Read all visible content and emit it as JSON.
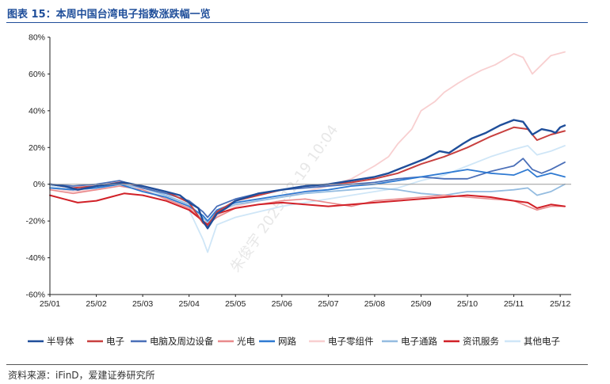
{
  "title": "图表 15：本周中国台湾电子指数涨跌幅一览",
  "source": "资料来源：iFinD，爱建证券研究所",
  "watermark": "朱俊宇 2025-12-19 10:04",
  "chart_data": {
    "type": "line",
    "x_ticks": [
      "25/01",
      "25/02",
      "25/03",
      "25/04",
      "25/05",
      "25/06",
      "25/07",
      "25/08",
      "25/09",
      "25/10",
      "25/11",
      "25/12"
    ],
    "y_ticks": [
      "80%",
      "60%",
      "40%",
      "20%",
      "0%",
      "-20%",
      "-40%",
      "-60%"
    ],
    "ylim": [
      -60,
      80
    ],
    "xlim": [
      0,
      11.1
    ],
    "grid": false,
    "legend_position": "bottom",
    "series": [
      {
        "name": "半导体",
        "color": "#1f4e9a",
        "width": 2.4,
        "points": [
          [
            0,
            0
          ],
          [
            0.3,
            -1
          ],
          [
            0.6,
            -3
          ],
          [
            1,
            -1
          ],
          [
            1.3,
            0
          ],
          [
            1.6,
            1
          ],
          [
            2,
            -1
          ],
          [
            2.5,
            -4
          ],
          [
            2.8,
            -6
          ],
          [
            3,
            -10
          ],
          [
            3.2,
            -13
          ],
          [
            3.3,
            -20
          ],
          [
            3.4,
            -24
          ],
          [
            3.6,
            -16
          ],
          [
            3.8,
            -13
          ],
          [
            4,
            -9
          ],
          [
            4.5,
            -5
          ],
          [
            5,
            -3
          ],
          [
            5.5,
            -1
          ],
          [
            6,
            0
          ],
          [
            6.5,
            2
          ],
          [
            7,
            4
          ],
          [
            7.3,
            6
          ],
          [
            7.6,
            9
          ],
          [
            7.9,
            12
          ],
          [
            8.1,
            14
          ],
          [
            8.4,
            18
          ],
          [
            8.6,
            17
          ],
          [
            8.9,
            22
          ],
          [
            9.1,
            25
          ],
          [
            9.4,
            28
          ],
          [
            9.7,
            32
          ],
          [
            10,
            35
          ],
          [
            10.2,
            34
          ],
          [
            10.4,
            27
          ],
          [
            10.6,
            30
          ],
          [
            10.8,
            29
          ],
          [
            10.9,
            28
          ],
          [
            11,
            31
          ],
          [
            11.1,
            32
          ]
        ]
      },
      {
        "name": "电子",
        "color": "#c8403f",
        "width": 2.0,
        "points": [
          [
            0,
            0
          ],
          [
            0.5,
            -2
          ],
          [
            1,
            -1
          ],
          [
            1.5,
            1
          ],
          [
            2,
            -1
          ],
          [
            2.5,
            -4
          ],
          [
            3,
            -10
          ],
          [
            3.3,
            -21
          ],
          [
            3.4,
            -23
          ],
          [
            3.6,
            -15
          ],
          [
            4,
            -9
          ],
          [
            4.5,
            -6
          ],
          [
            5,
            -3
          ],
          [
            5.5,
            -1
          ],
          [
            6,
            0
          ],
          [
            6.5,
            1
          ],
          [
            7,
            3
          ],
          [
            7.5,
            6
          ],
          [
            8,
            11
          ],
          [
            8.5,
            15
          ],
          [
            9,
            20
          ],
          [
            9.5,
            26
          ],
          [
            10,
            31
          ],
          [
            10.3,
            30
          ],
          [
            10.5,
            24
          ],
          [
            10.8,
            27
          ],
          [
            11.1,
            29
          ]
        ]
      },
      {
        "name": "电脑及周边设备",
        "color": "#4a6fb8",
        "width": 1.8,
        "points": [
          [
            0,
            0
          ],
          [
            0.5,
            -1
          ],
          [
            1,
            0
          ],
          [
            1.5,
            2
          ],
          [
            2,
            -2
          ],
          [
            2.5,
            -5
          ],
          [
            3,
            -9
          ],
          [
            3.3,
            -15
          ],
          [
            3.4,
            -18
          ],
          [
            3.6,
            -12
          ],
          [
            4,
            -8
          ],
          [
            4.5,
            -5
          ],
          [
            5,
            -3
          ],
          [
            5.5,
            -2
          ],
          [
            6,
            -1
          ],
          [
            6.5,
            0
          ],
          [
            7,
            1
          ],
          [
            7.5,
            3
          ],
          [
            8,
            4
          ],
          [
            8.5,
            3
          ],
          [
            9,
            3
          ],
          [
            9.5,
            7
          ],
          [
            10,
            10
          ],
          [
            10.2,
            14
          ],
          [
            10.4,
            8
          ],
          [
            10.6,
            6
          ],
          [
            10.8,
            8
          ],
          [
            11.1,
            12
          ]
        ]
      },
      {
        "name": "光电",
        "color": "#e98a8c",
        "width": 1.6,
        "points": [
          [
            0,
            -3
          ],
          [
            0.5,
            -5
          ],
          [
            1,
            -3
          ],
          [
            1.5,
            -1
          ],
          [
            2,
            -3
          ],
          [
            2.5,
            -8
          ],
          [
            3,
            -13
          ],
          [
            3.3,
            -20
          ],
          [
            3.4,
            -22
          ],
          [
            3.6,
            -18
          ],
          [
            4,
            -13
          ],
          [
            4.5,
            -11
          ],
          [
            5,
            -9
          ],
          [
            5.5,
            -8
          ],
          [
            6,
            -10
          ],
          [
            6.5,
            -12
          ],
          [
            7,
            -9
          ],
          [
            7.5,
            -8
          ],
          [
            8,
            -7
          ],
          [
            8.5,
            -6
          ],
          [
            9,
            -7
          ],
          [
            9.5,
            -8
          ],
          [
            10,
            -9
          ],
          [
            10.3,
            -12
          ],
          [
            10.5,
            -14
          ],
          [
            10.8,
            -12
          ],
          [
            11.1,
            -12
          ]
        ]
      },
      {
        "name": "网路",
        "color": "#2f7ad2",
        "width": 1.8,
        "points": [
          [
            0,
            -2
          ],
          [
            0.5,
            -3
          ],
          [
            1,
            -2
          ],
          [
            1.5,
            0
          ],
          [
            2,
            -4
          ],
          [
            2.5,
            -7
          ],
          [
            3,
            -12
          ],
          [
            3.3,
            -17
          ],
          [
            3.4,
            -20
          ],
          [
            3.6,
            -14
          ],
          [
            4,
            -10
          ],
          [
            4.5,
            -8
          ],
          [
            5,
            -6
          ],
          [
            5.5,
            -4
          ],
          [
            6,
            -3
          ],
          [
            6.5,
            -1
          ],
          [
            7,
            0
          ],
          [
            7.5,
            2
          ],
          [
            8,
            4
          ],
          [
            8.5,
            6
          ],
          [
            9,
            8
          ],
          [
            9.5,
            6
          ],
          [
            10,
            5
          ],
          [
            10.3,
            8
          ],
          [
            10.5,
            4
          ],
          [
            10.8,
            6
          ],
          [
            11.1,
            4
          ]
        ]
      },
      {
        "name": "电子零组件",
        "color": "#f8cfd0",
        "width": 1.8,
        "points": [
          [
            0,
            -2
          ],
          [
            0.5,
            -4
          ],
          [
            1,
            -3
          ],
          [
            1.5,
            -1
          ],
          [
            2,
            -3
          ],
          [
            2.5,
            -7
          ],
          [
            3,
            -12
          ],
          [
            3.3,
            -21
          ],
          [
            3.4,
            -23
          ],
          [
            3.6,
            -17
          ],
          [
            4,
            -12
          ],
          [
            4.5,
            -9
          ],
          [
            5,
            -7
          ],
          [
            5.5,
            -4
          ],
          [
            6,
            -1
          ],
          [
            6.5,
            3
          ],
          [
            7,
            10
          ],
          [
            7.3,
            15
          ],
          [
            7.5,
            22
          ],
          [
            7.8,
            30
          ],
          [
            8,
            40
          ],
          [
            8.3,
            45
          ],
          [
            8.5,
            50
          ],
          [
            8.8,
            55
          ],
          [
            9,
            58
          ],
          [
            9.3,
            62
          ],
          [
            9.6,
            65
          ],
          [
            9.8,
            68
          ],
          [
            10,
            71
          ],
          [
            10.2,
            69
          ],
          [
            10.4,
            60
          ],
          [
            10.6,
            65
          ],
          [
            10.8,
            70
          ],
          [
            11.1,
            72
          ]
        ]
      },
      {
        "name": "电子通路",
        "color": "#94bce0",
        "width": 1.8,
        "points": [
          [
            0,
            -2
          ],
          [
            0.5,
            -3
          ],
          [
            1,
            -2
          ],
          [
            1.5,
            0
          ],
          [
            2,
            -2
          ],
          [
            2.5,
            -6
          ],
          [
            3,
            -11
          ],
          [
            3.3,
            -18
          ],
          [
            3.4,
            -21
          ],
          [
            3.6,
            -15
          ],
          [
            4,
            -11
          ],
          [
            4.5,
            -9
          ],
          [
            5,
            -7
          ],
          [
            5.5,
            -5
          ],
          [
            6,
            -4
          ],
          [
            6.5,
            -3
          ],
          [
            7,
            -2
          ],
          [
            7.5,
            -3
          ],
          [
            8,
            -5
          ],
          [
            8.5,
            -6
          ],
          [
            9,
            -4
          ],
          [
            9.5,
            -4
          ],
          [
            10,
            -3
          ],
          [
            10.3,
            -2
          ],
          [
            10.5,
            -6
          ],
          [
            10.8,
            -4
          ],
          [
            11.1,
            0
          ]
        ]
      },
      {
        "name": "资讯服务",
        "color": "#d12027",
        "width": 2.0,
        "points": [
          [
            0,
            -6
          ],
          [
            0.3,
            -8
          ],
          [
            0.6,
            -10
          ],
          [
            1,
            -9
          ],
          [
            1.3,
            -7
          ],
          [
            1.6,
            -5
          ],
          [
            2,
            -6
          ],
          [
            2.5,
            -9
          ],
          [
            3,
            -14
          ],
          [
            3.3,
            -20
          ],
          [
            3.4,
            -22
          ],
          [
            3.6,
            -16
          ],
          [
            4,
            -13
          ],
          [
            4.5,
            -11
          ],
          [
            5,
            -10
          ],
          [
            5.5,
            -11
          ],
          [
            6,
            -12
          ],
          [
            6.5,
            -11
          ],
          [
            7,
            -10
          ],
          [
            7.5,
            -9
          ],
          [
            8,
            -8
          ],
          [
            8.5,
            -7
          ],
          [
            9,
            -6
          ],
          [
            9.5,
            -7
          ],
          [
            10,
            -9
          ],
          [
            10.3,
            -10
          ],
          [
            10.5,
            -13
          ],
          [
            10.8,
            -11
          ],
          [
            11.1,
            -12
          ]
        ]
      },
      {
        "name": "其他电子",
        "color": "#cfe6f7",
        "width": 1.8,
        "points": [
          [
            0,
            -1
          ],
          [
            0.5,
            -3
          ],
          [
            1,
            -2
          ],
          [
            1.5,
            -1
          ],
          [
            2,
            -3
          ],
          [
            2.5,
            -7
          ],
          [
            3,
            -14
          ],
          [
            3.3,
            -30
          ],
          [
            3.4,
            -37
          ],
          [
            3.6,
            -22
          ],
          [
            4,
            -18
          ],
          [
            4.5,
            -15
          ],
          [
            5,
            -12
          ],
          [
            5.5,
            -10
          ],
          [
            6,
            -8
          ],
          [
            6.5,
            -6
          ],
          [
            7,
            -4
          ],
          [
            7.5,
            -2
          ],
          [
            8,
            2
          ],
          [
            8.5,
            5
          ],
          [
            9,
            10
          ],
          [
            9.5,
            15
          ],
          [
            10,
            19
          ],
          [
            10.3,
            21
          ],
          [
            10.5,
            16
          ],
          [
            10.8,
            18
          ],
          [
            11.1,
            21
          ]
        ]
      }
    ]
  }
}
